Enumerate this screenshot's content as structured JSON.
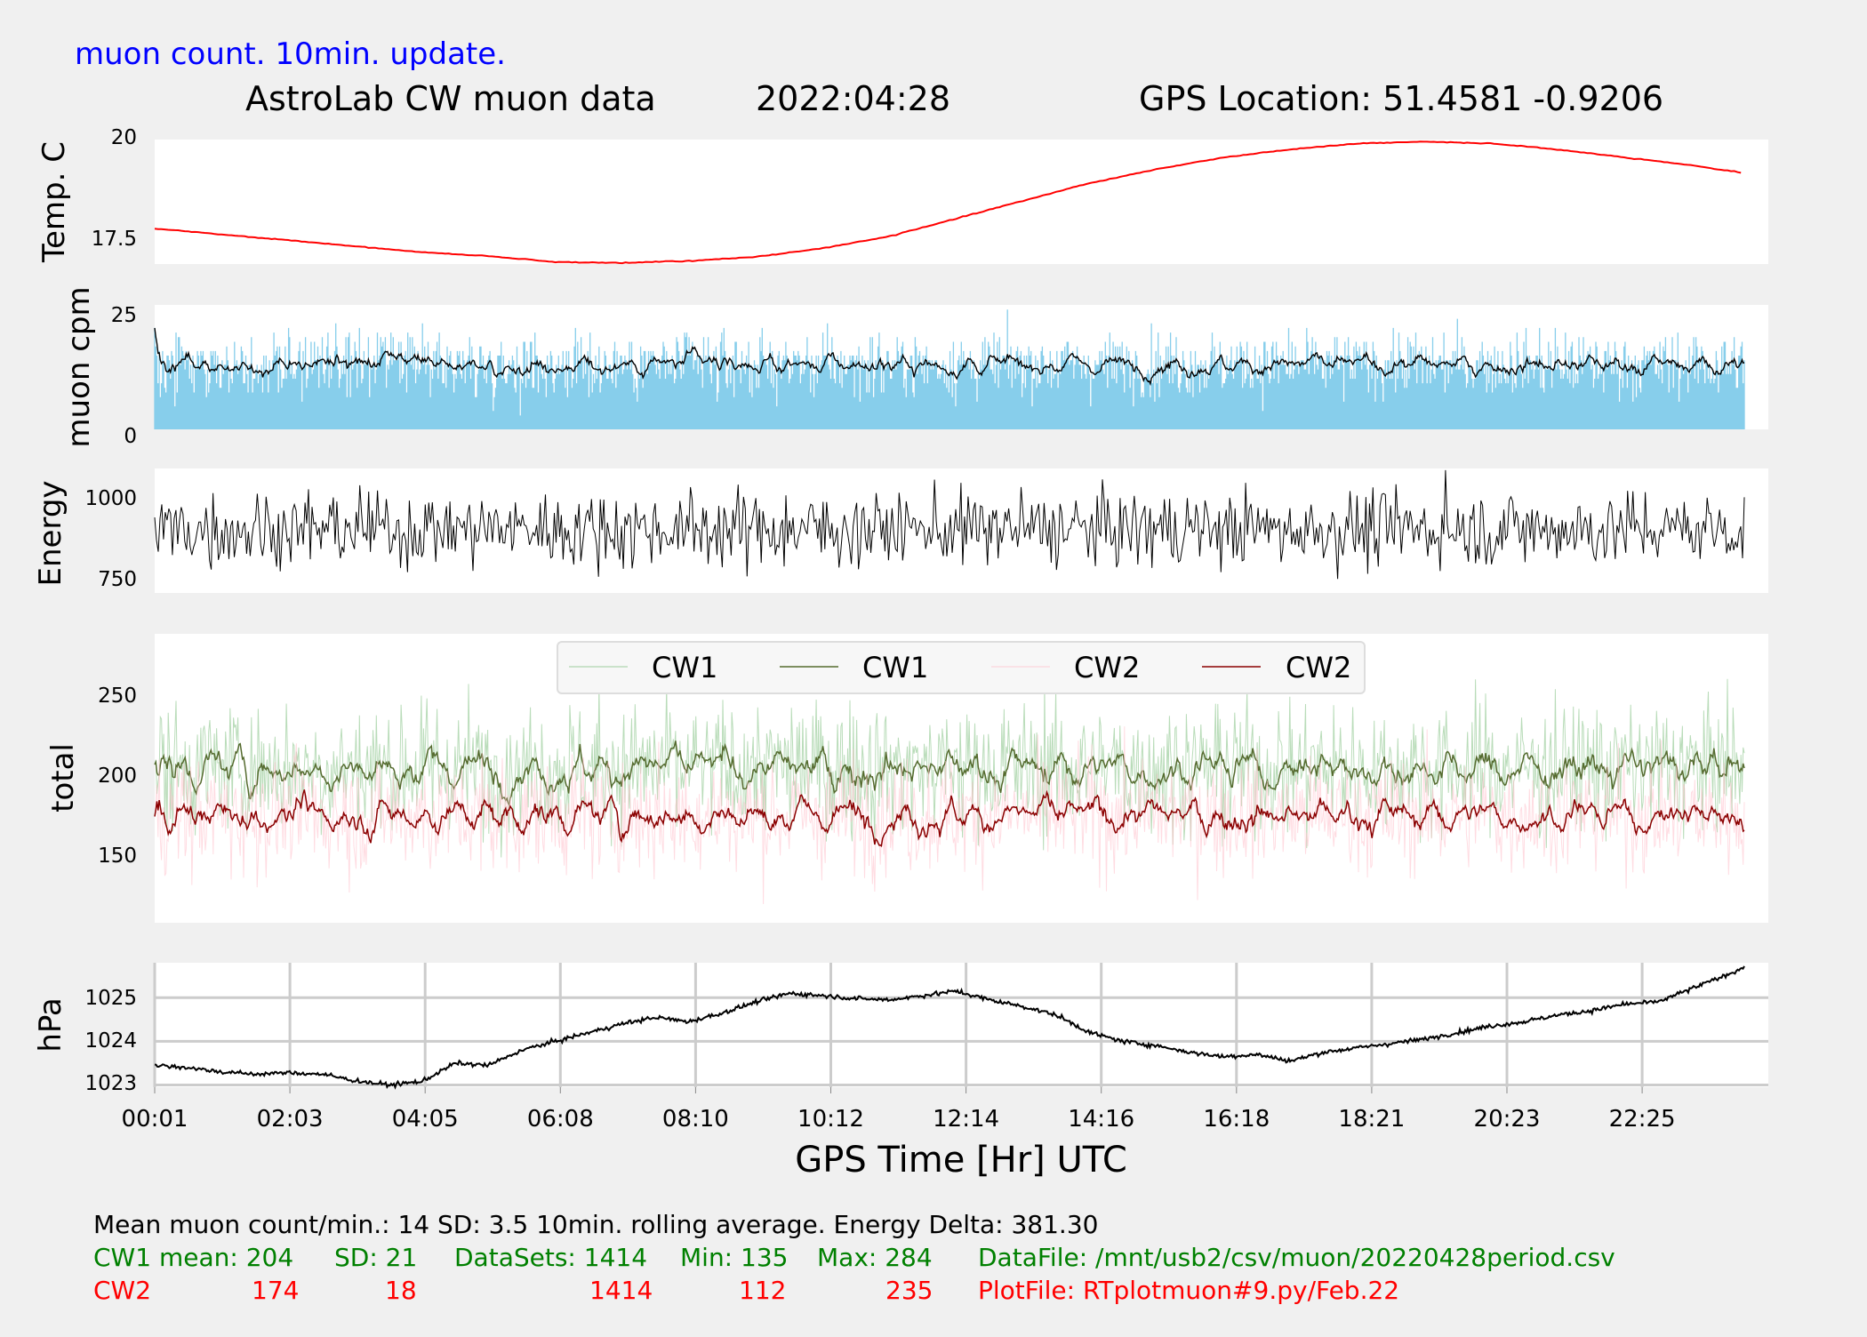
{
  "header": {
    "update_note": "muon count.  10min. update.",
    "title": "AstroLab CW muon data",
    "date": "2022:04:28",
    "gps": "GPS Location: 51.4581   -0.9206"
  },
  "colors": {
    "temp": "#ff0000",
    "muon_bar": "#87ceeb",
    "rolling": "#000000",
    "cw1_raw": "#7fbf7f",
    "cw1_avg": "#556b2f",
    "cw2_raw": "#ffc0cb",
    "cw2_avg": "#8b0000",
    "note_blue": "#0000ff",
    "stats_green": "#008000",
    "stats_red": "#ff0000",
    "plot_bg": "#ffffff",
    "grid": "#cccccc"
  },
  "xaxis": {
    "label": "GPS Time  [Hr] UTC",
    "ticks": [
      "00:01",
      "02:03",
      "04:05",
      "06:08",
      "08:10",
      "10:12",
      "12:14",
      "14:16",
      "16:18",
      "18:21",
      "20:23",
      "22:25"
    ]
  },
  "chart_data": [
    {
      "type": "line",
      "ylabel": "Temp. C",
      "yticks": [
        17.5,
        20.0
      ],
      "ylim": [
        16.9,
        20.05
      ],
      "x_hours": [
        0,
        1,
        2,
        3,
        4,
        5,
        6,
        7,
        8,
        9,
        10,
        11,
        12,
        13,
        14,
        15,
        16,
        17,
        18,
        19,
        20,
        21,
        22,
        23,
        23.8
      ],
      "series": [
        {
          "values": [
            17.8,
            17.65,
            17.5,
            17.35,
            17.2,
            17.1,
            16.95,
            16.93,
            16.98,
            17.08,
            17.3,
            17.6,
            18.05,
            18.5,
            18.95,
            19.3,
            19.6,
            19.8,
            19.95,
            20.0,
            19.95,
            19.8,
            19.6,
            19.4,
            19.2
          ]
        }
      ]
    },
    {
      "type": "bar+line",
      "ylabel": "muon cpm",
      "yticks": [
        0,
        25
      ],
      "ylim": [
        0,
        27
      ],
      "samples": 1414,
      "mean": 14,
      "sd": 3.5,
      "max": 27,
      "series": [
        {
          "kind": "bar",
          "note": "per-minute muon count"
        },
        {
          "kind": "line",
          "note": "10min. rolling average",
          "mean": 14
        }
      ]
    },
    {
      "type": "line",
      "ylabel": "Energy",
      "yticks": [
        750,
        1000
      ],
      "ylim": [
        710,
        1080
      ],
      "mean": 900,
      "min": 710,
      "max": 1075,
      "delta": 381.3
    },
    {
      "type": "line",
      "ylabel": "total",
      "yticks": [
        150,
        200,
        250
      ],
      "ylim": [
        105,
        290
      ],
      "legend": [
        "CW1",
        "CW1",
        "CW2",
        "CW2"
      ],
      "legend_position": "top-center",
      "series": [
        {
          "name": "CW1",
          "kind": "raw",
          "mean": 204,
          "sd": 21,
          "min": 135,
          "max": 284
        },
        {
          "name": "CW1",
          "kind": "rolling",
          "mean": 204
        },
        {
          "name": "CW2",
          "kind": "raw",
          "mean": 174,
          "sd": 18,
          "min": 112,
          "max": 235
        },
        {
          "name": "CW2",
          "kind": "rolling",
          "mean": 174
        }
      ]
    },
    {
      "type": "line",
      "ylabel": "hPa",
      "yticks": [
        1023,
        1024,
        1025
      ],
      "ylim": [
        1022.95,
        1025.8
      ],
      "grid": true,
      "x_hours": [
        0,
        0.5,
        1,
        1.5,
        2,
        2.5,
        3,
        3.5,
        4,
        4.5,
        5,
        5.5,
        6,
        6.5,
        7,
        7.5,
        8,
        8.5,
        9,
        9.5,
        10,
        10.5,
        11,
        11.5,
        12,
        12.5,
        13,
        13.5,
        14,
        14.5,
        15,
        15.5,
        16,
        16.5,
        17,
        17.5,
        18,
        18.5,
        19,
        19.5,
        20,
        20.5,
        21,
        21.5,
        22,
        22.5,
        23,
        23.5,
        23.8
      ],
      "series": [
        {
          "values": [
            1023.45,
            1023.4,
            1023.3,
            1023.25,
            1023.28,
            1023.25,
            1023.1,
            1023.0,
            1023.08,
            1023.5,
            1023.45,
            1023.8,
            1024.0,
            1024.2,
            1024.4,
            1024.55,
            1024.45,
            1024.65,
            1024.9,
            1025.1,
            1025.05,
            1024.98,
            1024.95,
            1025.05,
            1025.15,
            1024.95,
            1024.8,
            1024.6,
            1024.2,
            1024.0,
            1023.9,
            1023.75,
            1023.65,
            1023.7,
            1023.55,
            1023.75,
            1023.85,
            1023.95,
            1024.05,
            1024.2,
            1024.35,
            1024.45,
            1024.6,
            1024.7,
            1024.85,
            1024.9,
            1025.2,
            1025.5,
            1025.7
          ]
        }
      ]
    }
  ],
  "stats": {
    "line1": "Mean muon count/min.: 14  SD: 3.5   10min. rolling average.    Energy Delta:  381.30",
    "cw1": {
      "name": "CW1 mean: 204",
      "sd": "SD: 21",
      "datasets": "DataSets: 1414",
      "min": "Min: 135",
      "max": "Max: 284",
      "file": "DataFile: /mnt/usb2/csv/muon/20220428period.csv"
    },
    "cw2": {
      "name": "CW2",
      "mean": "174",
      "sd": "18",
      "datasets": "1414",
      "min": "112",
      "max": "235",
      "file": "PlotFile: RTplotmuon#9.py/Feb.22"
    }
  }
}
